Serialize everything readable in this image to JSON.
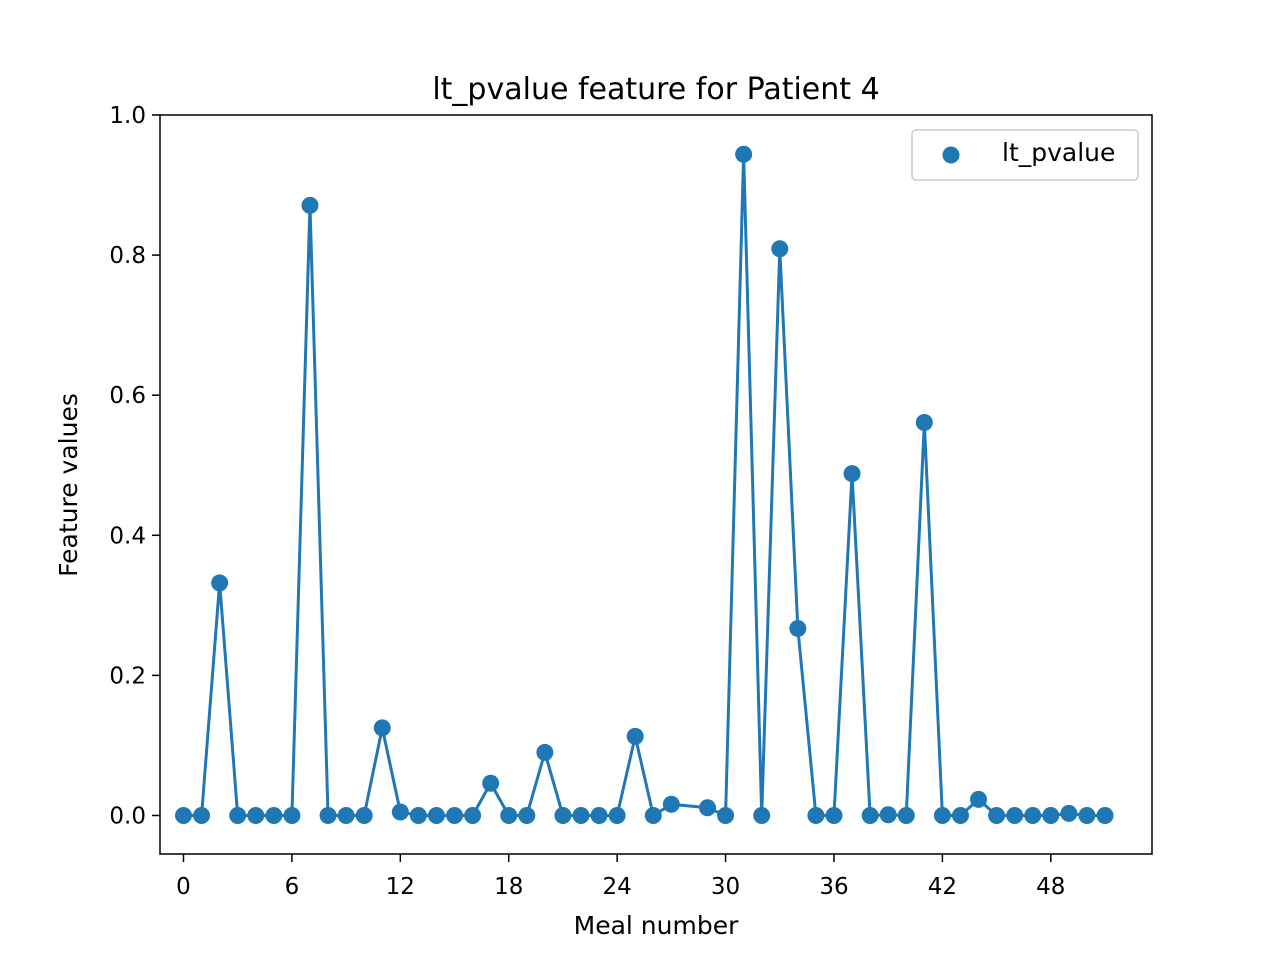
{
  "chart_data": {
    "type": "line",
    "title": "lt_pvalue feature for Patient 4",
    "xlabel": "Meal number",
    "ylabel": "Feature values",
    "xlim": [
      -1.3,
      53.6
    ],
    "ylim": [
      -0.055,
      1.0
    ],
    "x_ticks": [
      0,
      6,
      12,
      18,
      24,
      30,
      36,
      42,
      48
    ],
    "y_ticks": [
      0.0,
      0.2,
      0.4,
      0.6,
      0.8,
      1.0
    ],
    "grid": false,
    "legend_position": "top-right",
    "color": "#1f77b4",
    "series": [
      {
        "name": "lt_pvalue",
        "x": [
          0,
          1,
          2,
          3,
          4,
          5,
          6,
          7,
          8,
          9,
          10,
          11,
          12,
          13,
          14,
          15,
          16,
          17,
          18,
          19,
          20,
          21,
          22,
          23,
          24,
          25,
          26,
          27,
          29,
          30,
          31,
          32,
          33,
          34,
          35,
          36,
          37,
          38,
          39,
          40,
          41,
          42,
          43,
          44,
          45,
          46,
          47,
          48,
          49,
          50,
          51
        ],
        "y": [
          0.0,
          0.0,
          0.332,
          0.0,
          0.0,
          0.0,
          0.0,
          0.871,
          0.0,
          0.0,
          0.0,
          0.125,
          0.005,
          0.0,
          0.0,
          0.0,
          0.0,
          0.046,
          0.0,
          0.0,
          0.09,
          0.0,
          0.0,
          0.0,
          0.0,
          0.113,
          0.0,
          0.016,
          0.011,
          0.0,
          0.944,
          0.0,
          0.809,
          0.267,
          0.0,
          0.0,
          0.488,
          0.0,
          0.001,
          0.0,
          0.561,
          0.0,
          0.0,
          0.023,
          0.0,
          0.0,
          0.0,
          0.0,
          0.003,
          0.0,
          0.0
        ]
      }
    ]
  }
}
